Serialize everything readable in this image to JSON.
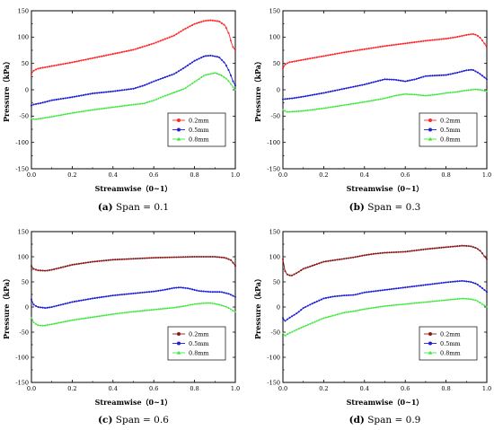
{
  "chart_data": [
    {
      "type": "line",
      "panel": "a",
      "caption_tag": "(a)",
      "caption_text": " Span = 0.1",
      "xlabel": "Streamwise（0~1）",
      "ylabel": "Pressure（kPa）",
      "xlim": [
        0,
        1
      ],
      "ylim": [
        -150,
        150
      ],
      "xticks": [
        "0.0",
        "0.2",
        "0.4",
        "0.6",
        "0.8",
        "1.0"
      ],
      "yticks": [
        "-150",
        "-100",
        "-50",
        "0",
        "50",
        "100",
        "150"
      ],
      "legend_position": "bottom-right",
      "series": [
        {
          "name": "0.2mm",
          "color": "#ff2a2a",
          "marker": "circle",
          "points": [
            [
              0,
              30
            ],
            [
              0.01,
              36
            ],
            [
              0.03,
              40
            ],
            [
              0.1,
              45
            ],
            [
              0.2,
              52
            ],
            [
              0.3,
              60
            ],
            [
              0.4,
              68
            ],
            [
              0.5,
              76
            ],
            [
              0.6,
              88
            ],
            [
              0.7,
              103
            ],
            [
              0.75,
              115
            ],
            [
              0.8,
              125
            ],
            [
              0.85,
              131
            ],
            [
              0.88,
              132
            ],
            [
              0.92,
              130
            ],
            [
              0.95,
              122
            ],
            [
              0.97,
              105
            ],
            [
              0.98,
              90
            ],
            [
              0.99,
              80
            ],
            [
              1.0,
              75
            ]
          ]
        },
        {
          "name": "0.5mm",
          "color": "#1f1fd6",
          "marker": "circle",
          "points": [
            [
              0,
              -30
            ],
            [
              0.01,
              -28
            ],
            [
              0.05,
              -25
            ],
            [
              0.1,
              -20
            ],
            [
              0.2,
              -14
            ],
            [
              0.3,
              -7
            ],
            [
              0.4,
              -3
            ],
            [
              0.5,
              2
            ],
            [
              0.55,
              8
            ],
            [
              0.6,
              16
            ],
            [
              0.7,
              30
            ],
            [
              0.75,
              42
            ],
            [
              0.8,
              55
            ],
            [
              0.85,
              64
            ],
            [
              0.88,
              65
            ],
            [
              0.92,
              62
            ],
            [
              0.95,
              50
            ],
            [
              0.97,
              35
            ],
            [
              0.99,
              15
            ],
            [
              1.0,
              8
            ]
          ]
        },
        {
          "name": "0.8mm",
          "color": "#3ee83e",
          "marker": "triangle",
          "points": [
            [
              0,
              -55
            ],
            [
              0.02,
              -56
            ],
            [
              0.1,
              -51
            ],
            [
              0.2,
              -44
            ],
            [
              0.3,
              -38
            ],
            [
              0.4,
              -33
            ],
            [
              0.5,
              -28
            ],
            [
              0.55,
              -26
            ],
            [
              0.6,
              -20
            ],
            [
              0.65,
              -12
            ],
            [
              0.7,
              -5
            ],
            [
              0.75,
              2
            ],
            [
              0.8,
              15
            ],
            [
              0.85,
              28
            ],
            [
              0.9,
              32
            ],
            [
              0.93,
              28
            ],
            [
              0.96,
              20
            ],
            [
              0.98,
              10
            ],
            [
              1.0,
              0
            ]
          ]
        }
      ]
    },
    {
      "type": "line",
      "panel": "b",
      "caption_tag": "(b)",
      "caption_text": " Span = 0.3",
      "xlabel": "Streamwise（0~1）",
      "ylabel": "Pressure（kPa）",
      "xlim": [
        0,
        1
      ],
      "ylim": [
        -150,
        150
      ],
      "xticks": [
        "0.0",
        "0.2",
        "0.4",
        "0.6",
        "0.8",
        "1.0"
      ],
      "yticks": [
        "-150",
        "-100",
        "-50",
        "0",
        "50",
        "100",
        "150"
      ],
      "legend_position": "bottom-right",
      "series": [
        {
          "name": "0.2mm",
          "color": "#ff2a2a",
          "marker": "circle",
          "points": [
            [
              0,
              40
            ],
            [
              0.01,
              48
            ],
            [
              0.03,
              52
            ],
            [
              0.1,
              57
            ],
            [
              0.2,
              64
            ],
            [
              0.3,
              71
            ],
            [
              0.4,
              77
            ],
            [
              0.5,
              83
            ],
            [
              0.6,
              88
            ],
            [
              0.7,
              93
            ],
            [
              0.8,
              97
            ],
            [
              0.85,
              100
            ],
            [
              0.9,
              104
            ],
            [
              0.93,
              106
            ],
            [
              0.95,
              104
            ],
            [
              0.97,
              98
            ],
            [
              0.99,
              87
            ],
            [
              1.0,
              80
            ]
          ]
        },
        {
          "name": "0.5mm",
          "color": "#1f1fd6",
          "marker": "circle",
          "points": [
            [
              0,
              -18
            ],
            [
              0.05,
              -16
            ],
            [
              0.1,
              -13
            ],
            [
              0.2,
              -6
            ],
            [
              0.3,
              2
            ],
            [
              0.4,
              10
            ],
            [
              0.45,
              15
            ],
            [
              0.5,
              20
            ],
            [
              0.55,
              19
            ],
            [
              0.6,
              16
            ],
            [
              0.65,
              20
            ],
            [
              0.7,
              26
            ],
            [
              0.8,
              28
            ],
            [
              0.85,
              32
            ],
            [
              0.9,
              37
            ],
            [
              0.93,
              38
            ],
            [
              0.96,
              32
            ],
            [
              0.98,
              26
            ],
            [
              1.0,
              20
            ]
          ]
        },
        {
          "name": "0.8mm",
          "color": "#3ee83e",
          "marker": "triangle",
          "points": [
            [
              0,
              -38
            ],
            [
              0.02,
              -42
            ],
            [
              0.1,
              -40
            ],
            [
              0.2,
              -35
            ],
            [
              0.3,
              -29
            ],
            [
              0.4,
              -23
            ],
            [
              0.5,
              -16
            ],
            [
              0.55,
              -11
            ],
            [
              0.6,
              -8
            ],
            [
              0.65,
              -9
            ],
            [
              0.7,
              -11
            ],
            [
              0.75,
              -9
            ],
            [
              0.8,
              -6
            ],
            [
              0.85,
              -4
            ],
            [
              0.9,
              -1
            ],
            [
              0.94,
              1
            ],
            [
              0.97,
              0
            ],
            [
              1.0,
              -3
            ]
          ]
        }
      ]
    },
    {
      "type": "line",
      "panel": "c",
      "caption_tag": "(c)",
      "caption_text": " Span = 0.6",
      "xlabel": "Streamwise（0~1）",
      "ylabel": "Pressure（kPa）",
      "xlim": [
        0,
        1
      ],
      "ylim": [
        -150,
        150
      ],
      "xticks": [
        "0.0",
        "0.2",
        "0.4",
        "0.6",
        "0.8",
        "1.0"
      ],
      "yticks": [
        "-150",
        "-100",
        "-50",
        "0",
        "50",
        "100",
        "150"
      ],
      "legend_position": "bottom-right",
      "series": [
        {
          "name": "0.2mm",
          "color": "#8b1a1a",
          "marker": "circle",
          "points": [
            [
              0,
              82
            ],
            [
              0.01,
              76
            ],
            [
              0.03,
              73
            ],
            [
              0.07,
              72
            ],
            [
              0.1,
              74
            ],
            [
              0.15,
              79
            ],
            [
              0.2,
              84
            ],
            [
              0.3,
              90
            ],
            [
              0.4,
              94
            ],
            [
              0.5,
              96
            ],
            [
              0.6,
              98
            ],
            [
              0.7,
              99
            ],
            [
              0.8,
              100
            ],
            [
              0.85,
              100
            ],
            [
              0.9,
              100
            ],
            [
              0.95,
              98
            ],
            [
              0.98,
              93
            ],
            [
              1.0,
              82
            ]
          ]
        },
        {
          "name": "0.5mm",
          "color": "#1f1fd6",
          "marker": "circle",
          "points": [
            [
              0,
              15
            ],
            [
              0.01,
              5
            ],
            [
              0.03,
              0
            ],
            [
              0.07,
              -2
            ],
            [
              0.1,
              0
            ],
            [
              0.2,
              10
            ],
            [
              0.3,
              17
            ],
            [
              0.4,
              23
            ],
            [
              0.5,
              27
            ],
            [
              0.6,
              31
            ],
            [
              0.65,
              34
            ],
            [
              0.7,
              38
            ],
            [
              0.73,
              39
            ],
            [
              0.77,
              37
            ],
            [
              0.82,
              32
            ],
            [
              0.88,
              30
            ],
            [
              0.93,
              30
            ],
            [
              0.97,
              26
            ],
            [
              1.0,
              20
            ]
          ]
        },
        {
          "name": "0.8mm",
          "color": "#3ee83e",
          "marker": "triangle",
          "points": [
            [
              0,
              -22
            ],
            [
              0.01,
              -30
            ],
            [
              0.03,
              -36
            ],
            [
              0.06,
              -37
            ],
            [
              0.1,
              -34
            ],
            [
              0.2,
              -26
            ],
            [
              0.3,
              -20
            ],
            [
              0.4,
              -14
            ],
            [
              0.5,
              -9
            ],
            [
              0.6,
              -5
            ],
            [
              0.7,
              -1
            ],
            [
              0.75,
              2
            ],
            [
              0.8,
              6
            ],
            [
              0.85,
              8
            ],
            [
              0.88,
              8
            ],
            [
              0.92,
              5
            ],
            [
              0.96,
              0
            ],
            [
              0.98,
              -5
            ],
            [
              1.0,
              -10
            ]
          ]
        }
      ]
    },
    {
      "type": "line",
      "panel": "d",
      "caption_tag": "(d)",
      "caption_text": " Span = 0.9",
      "xlabel": "Streamwise（0~1）",
      "ylabel": "Pressure（kPa）",
      "xlim": [
        0,
        1
      ],
      "ylim": [
        -150,
        150
      ],
      "xticks": [
        "0.0",
        "0.2",
        "0.4",
        "0.6",
        "0.8",
        "1.0"
      ],
      "yticks": [
        "-150",
        "-100",
        "-50",
        "0",
        "50",
        "100",
        "150"
      ],
      "legend_position": "bottom-right",
      "series": [
        {
          "name": "0.2mm",
          "color": "#8b1a1a",
          "marker": "circle",
          "points": [
            [
              0,
              95
            ],
            [
              0.01,
              72
            ],
            [
              0.02,
              65
            ],
            [
              0.04,
              62
            ],
            [
              0.07,
              68
            ],
            [
              0.1,
              76
            ],
            [
              0.15,
              83
            ],
            [
              0.2,
              90
            ],
            [
              0.3,
              96
            ],
            [
              0.35,
              99
            ],
            [
              0.4,
              103
            ],
            [
              0.45,
              106
            ],
            [
              0.5,
              108
            ],
            [
              0.6,
              110
            ],
            [
              0.7,
              115
            ],
            [
              0.8,
              119
            ],
            [
              0.88,
              122
            ],
            [
              0.92,
              121
            ],
            [
              0.95,
              117
            ],
            [
              0.97,
              111
            ],
            [
              0.99,
              100
            ],
            [
              1.0,
              95
            ]
          ]
        },
        {
          "name": "0.5mm",
          "color": "#1f1fd6",
          "marker": "circle",
          "points": [
            [
              0,
              -22
            ],
            [
              0.01,
              -28
            ],
            [
              0.03,
              -22
            ],
            [
              0.07,
              -12
            ],
            [
              0.1,
              -2
            ],
            [
              0.15,
              8
            ],
            [
              0.2,
              17
            ],
            [
              0.25,
              21
            ],
            [
              0.3,
              23
            ],
            [
              0.35,
              24
            ],
            [
              0.4,
              29
            ],
            [
              0.5,
              34
            ],
            [
              0.6,
              39
            ],
            [
              0.7,
              44
            ],
            [
              0.8,
              49
            ],
            [
              0.85,
              51
            ],
            [
              0.88,
              52
            ],
            [
              0.92,
              50
            ],
            [
              0.95,
              46
            ],
            [
              0.97,
              40
            ],
            [
              1.0,
              30
            ]
          ]
        },
        {
          "name": "0.8mm",
          "color": "#3ee83e",
          "marker": "triangle",
          "points": [
            [
              0,
              -52
            ],
            [
              0.01,
              -57
            ],
            [
              0.03,
              -52
            ],
            [
              0.1,
              -39
            ],
            [
              0.2,
              -22
            ],
            [
              0.3,
              -11
            ],
            [
              0.35,
              -8
            ],
            [
              0.4,
              -4
            ],
            [
              0.5,
              2
            ],
            [
              0.6,
              6
            ],
            [
              0.7,
              10
            ],
            [
              0.8,
              14
            ],
            [
              0.85,
              16
            ],
            [
              0.88,
              17
            ],
            [
              0.92,
              16
            ],
            [
              0.95,
              13
            ],
            [
              0.97,
              8
            ],
            [
              1.0,
              0
            ]
          ]
        }
      ]
    }
  ]
}
